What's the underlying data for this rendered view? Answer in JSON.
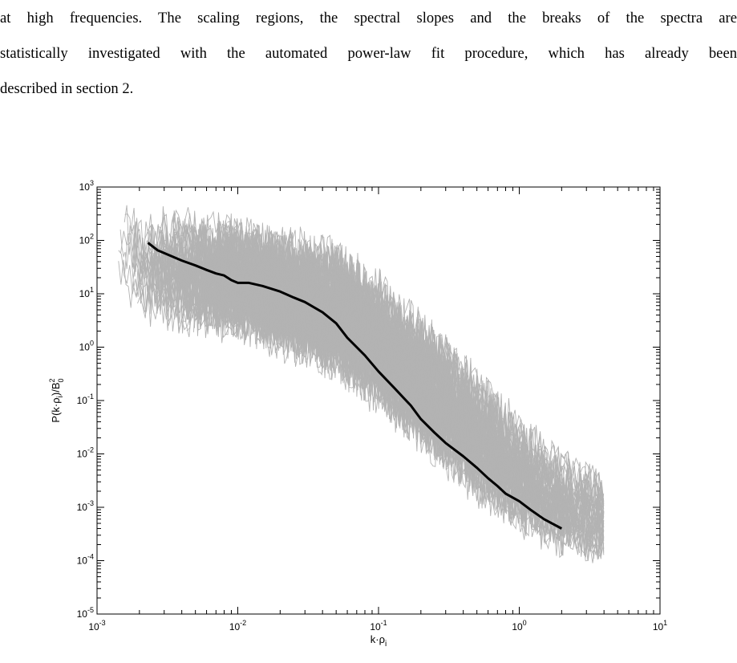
{
  "text": {
    "lines": [
      "at high frequencies. The scaling regions, the spectral slopes and the breaks of the spectra are",
      "statistically investigated with the automated power-law fit procedure, which has already been",
      "described in section 2."
    ]
  },
  "chart_data": {
    "type": "line",
    "title": "",
    "x_scale": "log",
    "y_scale": "log",
    "xlim": [
      0.001,
      10
    ],
    "ylim": [
      1e-05,
      1000
    ],
    "grid": false,
    "legend": "none",
    "xlabel": {
      "base": "k·ρ",
      "sub": "i"
    },
    "ylabel": {
      "base": "P(k·ρ",
      "sub": "i",
      "mid": ")/B",
      "sup": "2",
      "sub2": "0"
    },
    "x_ticks": [
      {
        "base": "10",
        "exp": "-3",
        "value": 0.001
      },
      {
        "base": "10",
        "exp": "-2",
        "value": 0.01
      },
      {
        "base": "10",
        "exp": "-1",
        "value": 0.1
      },
      {
        "base": "10",
        "exp": "0",
        "value": 1
      },
      {
        "base": "10",
        "exp": "1",
        "value": 10
      }
    ],
    "y_ticks": [
      {
        "base": "10",
        "exp": "3",
        "value": 1000
      },
      {
        "base": "10",
        "exp": "2",
        "value": 100
      },
      {
        "base": "10",
        "exp": "1",
        "value": 10
      },
      {
        "base": "10",
        "exp": "0",
        "value": 1
      },
      {
        "base": "10",
        "exp": "-1",
        "value": 0.1
      },
      {
        "base": "10",
        "exp": "-2",
        "value": 0.01
      },
      {
        "base": "10",
        "exp": "-3",
        "value": 0.001
      },
      {
        "base": "10",
        "exp": "-4",
        "value": 0.0001
      },
      {
        "base": "10",
        "exp": "-5",
        "value": 1e-05
      }
    ],
    "colors": {
      "individual_spectra": "#b3b3b3",
      "mean_spectrum": "#000000"
    },
    "series": [
      {
        "role": "mean spectrum",
        "x": [
          0.0023,
          0.0027,
          0.0033,
          0.004,
          0.005,
          0.006,
          0.007,
          0.008,
          0.009,
          0.01,
          0.012,
          0.015,
          0.02,
          0.025,
          0.03,
          0.04,
          0.05,
          0.06,
          0.08,
          0.1,
          0.13,
          0.17,
          0.2,
          0.25,
          0.3,
          0.4,
          0.5,
          0.6,
          0.7,
          0.8,
          1.0,
          1.2,
          1.5,
          2.0
        ],
        "y": [
          90,
          65,
          52,
          42,
          34,
          28,
          24,
          22,
          18,
          16,
          16,
          14,
          11,
          8.5,
          7,
          4.5,
          2.8,
          1.5,
          0.7,
          0.35,
          0.17,
          0.08,
          0.045,
          0.025,
          0.016,
          0.009,
          0.0055,
          0.0035,
          0.0025,
          0.0018,
          0.0013,
          0.0009,
          0.0006,
          0.0004
        ]
      },
      {
        "role": "individual spectra (envelope)",
        "x": [
          0.0015,
          0.003,
          0.005,
          0.01,
          0.02,
          0.05,
          0.1,
          0.2,
          0.5,
          1,
          2,
          4
        ],
        "y_upper": [
          700,
          450,
          400,
          300,
          200,
          120,
          30,
          5,
          0.5,
          0.06,
          0.015,
          0.005
        ],
        "y_lower": [
          4,
          2,
          1.5,
          1.2,
          0.6,
          0.2,
          0.05,
          0.01,
          0.001,
          0.0003,
          0.0001,
          8e-05
        ]
      }
    ]
  }
}
